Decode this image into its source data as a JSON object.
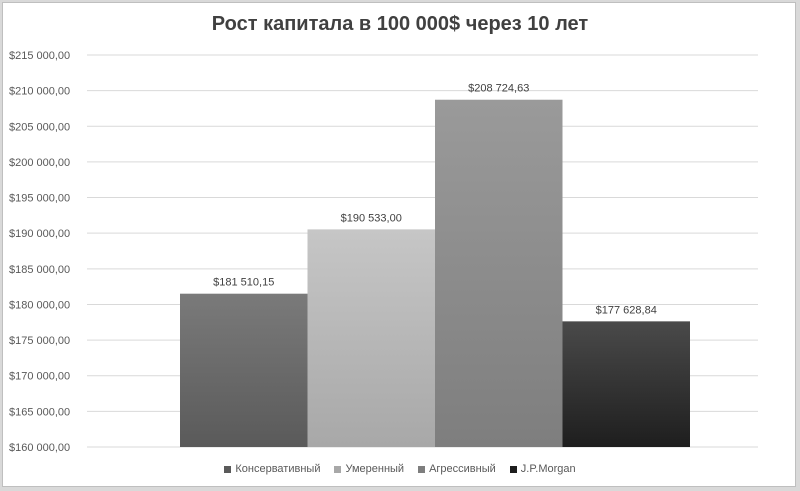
{
  "chart_data": {
    "type": "bar",
    "title": "Рост капитала в 100 000$ через 10 лет",
    "xlabel": "",
    "ylabel": "",
    "ylim": [
      160000,
      215000
    ],
    "y_ticks": [
      {
        "value": 215000,
        "label": "$215 000,00"
      },
      {
        "value": 210000,
        "label": "$210 000,00"
      },
      {
        "value": 205000,
        "label": "$205 000,00"
      },
      {
        "value": 200000,
        "label": "$200 000,00"
      },
      {
        "value": 195000,
        "label": "$195 000,00"
      },
      {
        "value": 190000,
        "label": "$190 000,00"
      },
      {
        "value": 185000,
        "label": "$185 000,00"
      },
      {
        "value": 180000,
        "label": "$180 000,00"
      },
      {
        "value": 175000,
        "label": "$175 000,00"
      },
      {
        "value": 170000,
        "label": "$170 000,00"
      },
      {
        "value": 165000,
        "label": "$165 000,00"
      },
      {
        "value": 160000,
        "label": "$160 000,00"
      }
    ],
    "grid": true,
    "legend_position": "bottom",
    "series": [
      {
        "name": "Консервативный",
        "value": 181510.15,
        "label": "$181 510,15",
        "color_top": "#7a7a7a",
        "color_bottom": "#5a5a5a"
      },
      {
        "name": "Умеренный",
        "value": 190533.0,
        "label": "$190 533,00",
        "color_top": "#c6c6c6",
        "color_bottom": "#a8a8a8"
      },
      {
        "name": "Агрессивный",
        "value": 208724.63,
        "label": "$208 724,63",
        "color_top": "#9a9a9a",
        "color_bottom": "#7e7e7e"
      },
      {
        "name": "J.P.Morgan",
        "value": 177628.84,
        "label": "$177 628,84",
        "color_top": "#4a4a4a",
        "color_bottom": "#1e1e1e"
      }
    ]
  }
}
